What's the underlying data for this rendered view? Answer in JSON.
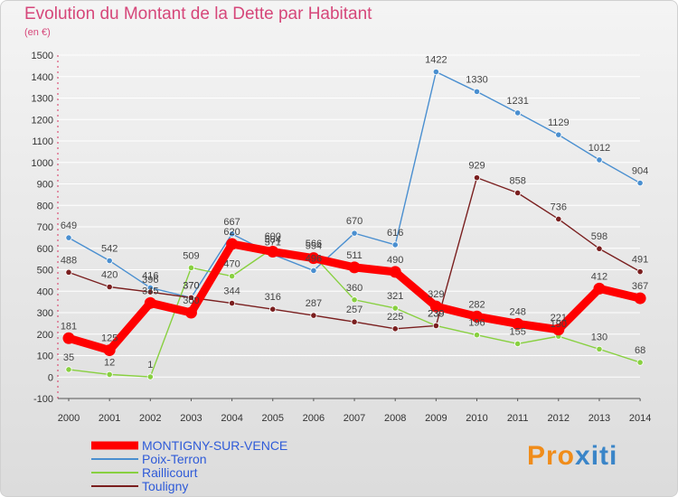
{
  "header": {
    "title": "Evolution du Montant de la Dette par Habitant",
    "unit": "(en €)"
  },
  "logo": {
    "part1": "Pro",
    "part2": "xiti"
  },
  "colors": {
    "title": "#d6477a",
    "legend_text": "#2f5bd8",
    "background_top": "#f4f4f4",
    "background_bottom": "#dcdcdc",
    "grid": "#ffffff",
    "axis_ticks": "#d6335f"
  },
  "chart_data": {
    "type": "line",
    "title": "Evolution du Montant de la Dette par Habitant",
    "ylabel": "(en €)",
    "x": [
      "2000",
      "2001",
      "2002",
      "2003",
      "2004",
      "2005",
      "2006",
      "2007",
      "2008",
      "2009",
      "2010",
      "2011",
      "2012",
      "2013",
      "2014"
    ],
    "ylim": [
      -100,
      1500
    ],
    "yticks": [
      -100,
      0,
      100,
      200,
      300,
      400,
      500,
      600,
      700,
      800,
      900,
      1000,
      1100,
      1200,
      1300,
      1400,
      1500
    ],
    "grid": true,
    "legend_position": "bottom-left",
    "series": [
      {
        "name": "MONTIGNY-SUR-VENCE",
        "color": "#ff0000",
        "emphasis": true,
        "values": [
          181,
          125,
          345,
          300,
          620,
          584,
          554,
          511,
          490,
          329,
          282,
          248,
          221,
          412,
          367
        ],
        "labels": [
          "181",
          "125",
          "345",
          "300",
          "620",
          "584",
          "554",
          "511",
          "490",
          "329",
          "282",
          "248",
          "221",
          "412",
          "367"
        ]
      },
      {
        "name": "Poix-Terron",
        "color": "#4a8fd0",
        "values": [
          649,
          542,
          416,
          370,
          667,
          571,
          496,
          670,
          616,
          1422,
          1330,
          1231,
          1129,
          1012,
          904
        ],
        "labels": [
          "649",
          "542",
          "416",
          "370",
          "667",
          "571",
          "496",
          "670",
          "616",
          "1422",
          "1330",
          "1231",
          "1129",
          "1012",
          "904"
        ]
      },
      {
        "name": "Raillicourt",
        "color": "#88d040",
        "values": [
          35,
          12,
          1,
          509,
          470,
          600,
          566,
          360,
          321,
          239,
          196,
          155,
          190,
          130,
          68
        ],
        "labels": [
          "35",
          "12",
          "1",
          "509",
          "470",
          "600",
          "566",
          "360",
          "321",
          "239",
          "196",
          "155",
          "190",
          "130",
          "68"
        ]
      },
      {
        "name": "Touligny",
        "color": "#7a1f1f",
        "values": [
          488,
          420,
          396,
          370,
          344,
          316,
          287,
          257,
          225,
          239,
          929,
          858,
          736,
          598,
          491
        ],
        "labels": [
          "488",
          "420",
          "396",
          "370",
          "344",
          "316",
          "287",
          "257",
          "225",
          "239",
          "929",
          "858",
          "736",
          "598",
          "491"
        ]
      }
    ]
  }
}
